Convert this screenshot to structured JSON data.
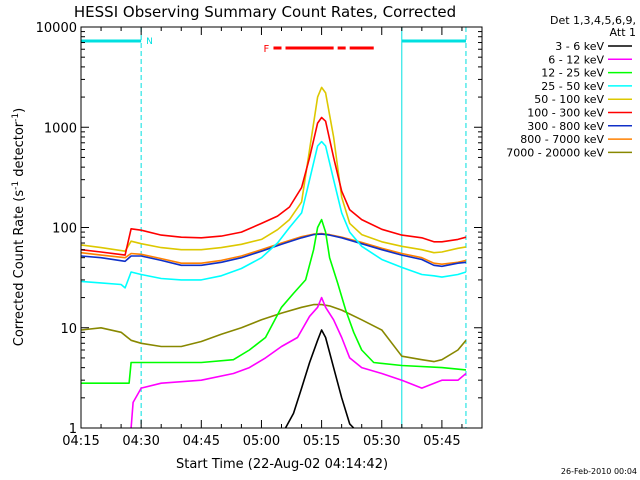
{
  "chart_data": {
    "type": "line",
    "title": "HESSI Observing Summary Count Rates, Corrected",
    "xlabel": "Start Time (22-Aug-02 04:14:42)",
    "ylabel_main": "Corrected Count Rate (s",
    "ylabel_sup1": "-1",
    "ylabel_mid": " detector",
    "ylabel_sup2": "-1",
    "ylabel_end": ")",
    "y_scale": "log",
    "ylim": [
      1,
      10000
    ],
    "xlim_minutes": [
      0,
      100
    ],
    "x_ticks": [
      {
        "minute": 0,
        "label": "04:15"
      },
      {
        "minute": 15,
        "label": "04:30"
      },
      {
        "minute": 30,
        "label": "04:45"
      },
      {
        "minute": 45,
        "label": "05:00"
      },
      {
        "minute": 60,
        "label": "05:15"
      },
      {
        "minute": 75,
        "label": "05:30"
      },
      {
        "minute": 90,
        "label": "05:45"
      }
    ],
    "y_ticks": [
      {
        "value": 1,
        "label": "1"
      },
      {
        "value": 10,
        "label": "10"
      },
      {
        "value": 100,
        "label": "100"
      },
      {
        "value": 1000,
        "label": "1000"
      },
      {
        "value": 10000,
        "label": "10000"
      }
    ],
    "legend_header": [
      "Det 1,3,4,5,6,9,",
      "Att 1"
    ],
    "legend_position": "right",
    "series": [
      {
        "name": "3 - 6 keV",
        "color": "#000000",
        "points": [
          [
            51,
            1
          ],
          [
            53,
            1.4
          ],
          [
            55,
            2.5
          ],
          [
            57,
            4.5
          ],
          [
            59,
            7.5
          ],
          [
            60,
            9.5
          ],
          [
            61,
            8
          ],
          [
            63,
            4
          ],
          [
            65,
            2
          ],
          [
            67,
            1.1
          ],
          [
            68,
            1
          ]
        ]
      },
      {
        "name": "6 - 12 keV",
        "color": "#ff00ff",
        "points": [
          [
            12.5,
            1
          ],
          [
            13,
            1.8
          ],
          [
            15,
            2.5
          ],
          [
            20,
            2.8
          ],
          [
            30,
            3
          ],
          [
            38,
            3.5
          ],
          [
            42,
            4
          ],
          [
            46,
            5
          ],
          [
            50,
            6.5
          ],
          [
            54,
            8
          ],
          [
            57,
            13
          ],
          [
            59,
            16
          ],
          [
            60,
            20
          ],
          [
            61,
            16
          ],
          [
            63,
            12
          ],
          [
            65,
            8
          ],
          [
            67,
            5
          ],
          [
            70,
            4
          ],
          [
            75,
            3.5
          ],
          [
            80,
            3
          ],
          [
            85,
            2.5
          ],
          [
            90,
            3
          ],
          [
            94,
            3
          ],
          [
            96,
            3.5
          ]
        ]
      },
      {
        "name": "12 - 25 keV",
        "color": "#00ff00",
        "points": [
          [
            0,
            2.8
          ],
          [
            12,
            2.8
          ],
          [
            12.5,
            4.5
          ],
          [
            20,
            4.5
          ],
          [
            30,
            4.5
          ],
          [
            38,
            4.8
          ],
          [
            42,
            6
          ],
          [
            46,
            8
          ],
          [
            50,
            16
          ],
          [
            53,
            22
          ],
          [
            56,
            30
          ],
          [
            58,
            60
          ],
          [
            59,
            100
          ],
          [
            60,
            120
          ],
          [
            61,
            90
          ],
          [
            62,
            50
          ],
          [
            64,
            28
          ],
          [
            66,
            15
          ],
          [
            68,
            9
          ],
          [
            70,
            6
          ],
          [
            73,
            4.5
          ],
          [
            80,
            4.2
          ],
          [
            90,
            4
          ],
          [
            96,
            3.8
          ]
        ]
      },
      {
        "name": "25 - 50 keV",
        "color": "#00ffff",
        "points": [
          [
            0,
            29
          ],
          [
            5,
            28
          ],
          [
            10,
            27
          ],
          [
            11,
            25
          ],
          [
            12.5,
            36
          ],
          [
            15,
            34
          ],
          [
            20,
            31
          ],
          [
            25,
            30
          ],
          [
            30,
            30
          ],
          [
            35,
            33
          ],
          [
            40,
            39
          ],
          [
            45,
            50
          ],
          [
            49,
            70
          ],
          [
            52,
            100
          ],
          [
            55,
            140
          ],
          [
            57,
            300
          ],
          [
            59,
            650
          ],
          [
            60,
            720
          ],
          [
            61,
            650
          ],
          [
            63,
            300
          ],
          [
            65,
            140
          ],
          [
            67,
            90
          ],
          [
            70,
            65
          ],
          [
            75,
            48
          ],
          [
            80,
            40
          ],
          [
            85,
            34
          ],
          [
            88,
            33
          ],
          [
            90,
            32
          ],
          [
            94,
            34
          ],
          [
            96,
            36
          ]
        ]
      },
      {
        "name": "50 - 100 keV",
        "color": "#ddc800",
        "points": [
          [
            0,
            67
          ],
          [
            5,
            63
          ],
          [
            11,
            58
          ],
          [
            12.5,
            73
          ],
          [
            15,
            69
          ],
          [
            20,
            63
          ],
          [
            25,
            60
          ],
          [
            30,
            60
          ],
          [
            35,
            63
          ],
          [
            40,
            68
          ],
          [
            45,
            76
          ],
          [
            49,
            95
          ],
          [
            52,
            120
          ],
          [
            55,
            180
          ],
          [
            57,
            600
          ],
          [
            59,
            2000
          ],
          [
            60,
            2500
          ],
          [
            61,
            2200
          ],
          [
            63,
            800
          ],
          [
            65,
            200
          ],
          [
            67,
            110
          ],
          [
            70,
            85
          ],
          [
            75,
            72
          ],
          [
            80,
            65
          ],
          [
            85,
            60
          ],
          [
            88,
            56
          ],
          [
            90,
            57
          ],
          [
            94,
            62
          ],
          [
            96,
            64
          ]
        ]
      },
      {
        "name": "100 - 300 keV",
        "color": "#ff0000",
        "points": [
          [
            0,
            60
          ],
          [
            5,
            57
          ],
          [
            11,
            53
          ],
          [
            12.5,
            97
          ],
          [
            15,
            94
          ],
          [
            20,
            84
          ],
          [
            25,
            80
          ],
          [
            30,
            79
          ],
          [
            35,
            82
          ],
          [
            40,
            90
          ],
          [
            45,
            110
          ],
          [
            49,
            130
          ],
          [
            52,
            160
          ],
          [
            55,
            250
          ],
          [
            57,
            500
          ],
          [
            59,
            1100
          ],
          [
            60,
            1250
          ],
          [
            61,
            1150
          ],
          [
            63,
            500
          ],
          [
            65,
            230
          ],
          [
            67,
            150
          ],
          [
            70,
            120
          ],
          [
            75,
            96
          ],
          [
            80,
            84
          ],
          [
            85,
            79
          ],
          [
            88,
            72
          ],
          [
            90,
            72
          ],
          [
            94,
            76
          ],
          [
            96,
            80
          ]
        ]
      },
      {
        "name": "300 - 800 keV",
        "color": "#1030c8",
        "points": [
          [
            0,
            52
          ],
          [
            5,
            50
          ],
          [
            11,
            46
          ],
          [
            12.5,
            52
          ],
          [
            15,
            52
          ],
          [
            20,
            47
          ],
          [
            25,
            42
          ],
          [
            30,
            42
          ],
          [
            35,
            45
          ],
          [
            40,
            50
          ],
          [
            45,
            58
          ],
          [
            50,
            68
          ],
          [
            55,
            79
          ],
          [
            58,
            85
          ],
          [
            60,
            86
          ],
          [
            62,
            84
          ],
          [
            65,
            79
          ],
          [
            70,
            69
          ],
          [
            75,
            60
          ],
          [
            80,
            53
          ],
          [
            85,
            48
          ],
          [
            88,
            42
          ],
          [
            90,
            41
          ],
          [
            94,
            44
          ],
          [
            96,
            45
          ]
        ]
      },
      {
        "name": "800 - 7000 keV",
        "color": "#ff8000",
        "points": [
          [
            0,
            56
          ],
          [
            5,
            53
          ],
          [
            11,
            50
          ],
          [
            12.5,
            55
          ],
          [
            15,
            54
          ],
          [
            20,
            49
          ],
          [
            25,
            44
          ],
          [
            30,
            44
          ],
          [
            35,
            47
          ],
          [
            40,
            52
          ],
          [
            45,
            60
          ],
          [
            50,
            70
          ],
          [
            55,
            81
          ],
          [
            58,
            86
          ],
          [
            60,
            87
          ],
          [
            62,
            85
          ],
          [
            65,
            80
          ],
          [
            70,
            71
          ],
          [
            75,
            62
          ],
          [
            80,
            55
          ],
          [
            85,
            50
          ],
          [
            88,
            44
          ],
          [
            90,
            43
          ],
          [
            94,
            45
          ],
          [
            96,
            47
          ]
        ]
      },
      {
        "name": "7000 - 20000 keV",
        "color": "#888800",
        "points": [
          [
            0,
            9.5
          ],
          [
            5,
            10
          ],
          [
            10,
            9
          ],
          [
            12.5,
            7.5
          ],
          [
            15,
            7
          ],
          [
            20,
            6.5
          ],
          [
            25,
            6.5
          ],
          [
            30,
            7.3
          ],
          [
            35,
            8.6
          ],
          [
            40,
            10
          ],
          [
            45,
            12
          ],
          [
            50,
            14
          ],
          [
            55,
            16
          ],
          [
            58,
            17
          ],
          [
            60,
            17
          ],
          [
            62,
            16.5
          ],
          [
            65,
            15
          ],
          [
            70,
            12
          ],
          [
            75,
            9.5
          ],
          [
            80,
            5.2
          ],
          [
            85,
            4.8
          ],
          [
            88,
            4.6
          ],
          [
            90,
            4.8
          ],
          [
            94,
            6
          ],
          [
            96,
            7.5
          ]
        ]
      }
    ],
    "annotations": {
      "night_label": "N",
      "flare_label": "F",
      "date_stamp": "26-Feb-2010 00:04",
      "night_intervals_minutes": [
        [
          0,
          15
        ],
        [
          80,
          96
        ]
      ],
      "flare_segments_minutes": [
        [
          48,
          50
        ],
        [
          51,
          63
        ],
        [
          64,
          66
        ],
        [
          67,
          73
        ]
      ]
    }
  }
}
